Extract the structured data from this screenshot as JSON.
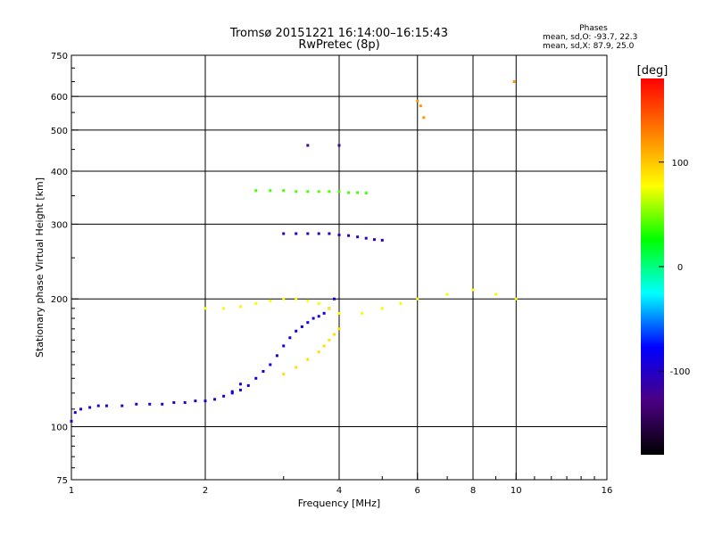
{
  "chart_data": {
    "type": "scatter",
    "title": "Tromsø 20151221 16:14:00–16:15:43",
    "subtitle": "RwPretec (8p)",
    "stats": {
      "heading": "Phases",
      "line1": "mean, sd,O: -93.7, 22.3",
      "line2": "mean, sd,X:  87.9, 25.0"
    },
    "xlabel": "Frequency [MHz]",
    "ylabel": "Stationary phase Virtual Height [km]",
    "x_scale": "log",
    "y_scale": "log",
    "xlim": [
      1,
      16
    ],
    "ylim": [
      75,
      750
    ],
    "x_ticks": [
      1,
      2,
      4,
      6,
      8,
      10,
      16
    ],
    "y_ticks": [
      75,
      100,
      200,
      300,
      400,
      500,
      600,
      750
    ],
    "grid": true,
    "colorbar": {
      "label": "[deg]",
      "range": [
        -180,
        180
      ],
      "ticks": [
        100,
        0,
        -100
      ],
      "colors": [
        "#000000",
        "#4b0082",
        "#0000ff",
        "#00ffff",
        "#00ff00",
        "#ffff00",
        "#ff7f00",
        "#ff0000"
      ]
    },
    "series": [
      {
        "frequency_mhz": [
          1.0,
          1.02,
          1.05,
          1.1,
          1.15,
          1.2,
          1.3,
          1.4,
          1.5,
          1.6,
          1.7,
          1.8,
          1.9,
          2.0,
          2.1,
          2.2,
          2.3,
          2.4
        ],
        "height_km": [
          103,
          108,
          110,
          111,
          112,
          112,
          112,
          113,
          113,
          113,
          114,
          114,
          115,
          115,
          116,
          118,
          121,
          126
        ],
        "phase_deg": -100
      },
      {
        "frequency_mhz": [
          2.3,
          2.4,
          2.5,
          2.6,
          2.7,
          2.8,
          2.9,
          3.0,
          3.1,
          3.2,
          3.3,
          3.4,
          3.5,
          3.6,
          3.7,
          3.8,
          3.9
        ],
        "height_km": [
          120,
          122,
          125,
          130,
          135,
          140,
          147,
          155,
          162,
          168,
          172,
          176,
          180,
          182,
          185,
          190,
          200
        ],
        "phase_deg": -90
      },
      {
        "frequency_mhz": [
          2.0,
          2.2,
          2.4,
          2.6,
          2.8,
          3.0,
          3.2,
          3.4,
          3.6,
          3.8,
          4.0,
          4.5,
          5.0,
          5.5,
          6.0,
          7.0,
          8.0,
          9.0,
          10.0
        ],
        "height_km": [
          190,
          190,
          192,
          195,
          198,
          200,
          200,
          198,
          195,
          190,
          185,
          185,
          190,
          195,
          200,
          205,
          210,
          205,
          200
        ],
        "phase_deg": 80
      },
      {
        "frequency_mhz": [
          3.0,
          3.2,
          3.4,
          3.6,
          3.8,
          4.0,
          4.2,
          4.4,
          4.6,
          4.8,
          5.0
        ],
        "height_km": [
          285,
          285,
          285,
          285,
          285,
          283,
          282,
          280,
          278,
          276,
          275
        ],
        "phase_deg": -110
      },
      {
        "frequency_mhz": [
          2.6,
          2.8,
          3.0,
          3.2,
          3.4,
          3.6,
          3.8,
          4.0,
          4.2,
          4.4,
          4.6
        ],
        "height_km": [
          360,
          360,
          360,
          358,
          358,
          358,
          358,
          358,
          356,
          356,
          355
        ],
        "phase_deg": 40
      },
      {
        "frequency_mhz": [
          3.0,
          3.2,
          3.4,
          3.6,
          3.7,
          3.8,
          3.9,
          4.0
        ],
        "height_km": [
          133,
          138,
          144,
          150,
          155,
          160,
          165,
          170
        ],
        "phase_deg": 90
      },
      {
        "frequency_mhz": [
          6.0,
          6.1,
          6.2,
          9.9
        ],
        "height_km": [
          585,
          570,
          535,
          650
        ],
        "phase_deg": 120
      },
      {
        "frequency_mhz": [
          3.4,
          4.0
        ],
        "height_km": [
          460,
          460
        ],
        "phase_deg": -120
      }
    ]
  }
}
